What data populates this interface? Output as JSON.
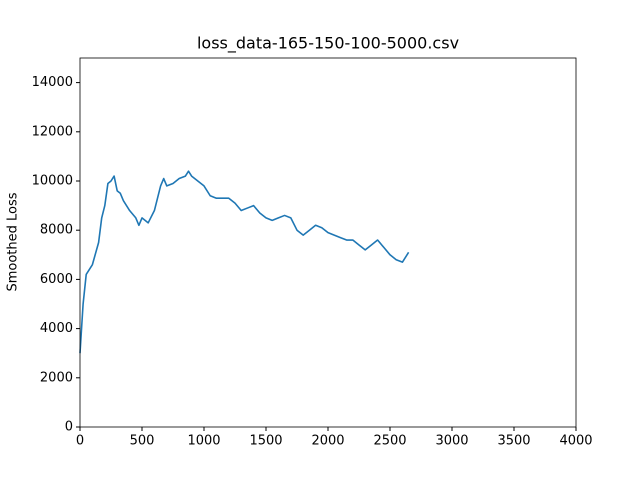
{
  "chart_data": {
    "type": "line",
    "title": "loss_data-165-150-100-5000.csv",
    "y_label": "Smoothed Loss",
    "x": [
      0,
      25,
      50,
      100,
      150,
      175,
      200,
      225,
      250,
      275,
      300,
      325,
      350,
      400,
      450,
      475,
      500,
      550,
      600,
      650,
      675,
      700,
      750,
      800,
      850,
      875,
      900,
      950,
      1000,
      1050,
      1100,
      1150,
      1200,
      1250,
      1300,
      1350,
      1400,
      1450,
      1500,
      1550,
      1600,
      1650,
      1700,
      1750,
      1800,
      1850,
      1900,
      1950,
      2000,
      2050,
      2100,
      2150,
      2200,
      2250,
      2300,
      2350,
      2400,
      2450,
      2500,
      2550,
      2600,
      2650
    ],
    "series": [
      {
        "name": "Smoothed Loss",
        "color": "#1f77b4",
        "values": [
          3000,
          5000,
          6200,
          6600,
          7500,
          8500,
          9000,
          9900,
          10000,
          10200,
          9600,
          9500,
          9200,
          8800,
          8500,
          8200,
          8500,
          8300,
          8800,
          9800,
          10100,
          9800,
          9900,
          10100,
          10200,
          10400,
          10200,
          10000,
          9800,
          9400,
          9300,
          9300,
          9300,
          9100,
          8800,
          8900,
          9000,
          8700,
          8500,
          8400,
          8500,
          8600,
          8500,
          8000,
          7800,
          8000,
          8200,
          8100,
          7900,
          7800,
          7700,
          7600,
          7600,
          7400,
          7200,
          7400,
          7600,
          7300,
          7000,
          6800,
          6700,
          7100
        ]
      }
    ],
    "xlim": [
      0,
      4000
    ],
    "xticks": [
      0,
      500,
      1000,
      1500,
      2000,
      2500,
      3000,
      3500,
      4000
    ],
    "ylim": [
      0,
      15000
    ],
    "yticks": [
      0,
      2000,
      4000,
      6000,
      8000,
      10000,
      12000,
      14000
    ]
  }
}
